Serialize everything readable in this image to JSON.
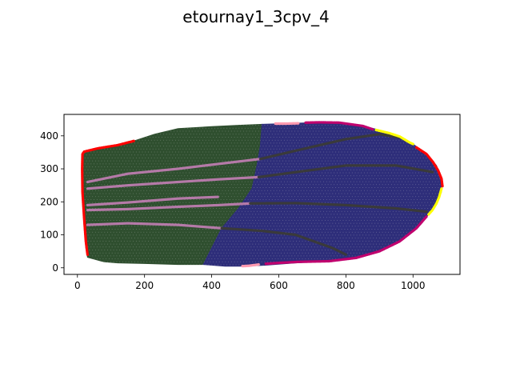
{
  "chart_data": {
    "type": "scatter",
    "title": "etournay1_3cpv_4",
    "xlabel": "",
    "ylabel": "",
    "xlim": [
      -40,
      1140
    ],
    "ylim": [
      -20,
      465
    ],
    "xticks": [
      0,
      200,
      400,
      600,
      800,
      1000
    ],
    "yticks": [
      0,
      100,
      200,
      300,
      400
    ],
    "grid": false,
    "legend": "none",
    "colors": {
      "posterior_region": "#2f4f2f",
      "anterior_region": "#2e2e7a",
      "vein_light": "#b57aa8",
      "vein_dark": "#3a3a3a",
      "margin_red": "#ff0000",
      "margin_magenta": "#c0006e",
      "margin_yellow": "#ffff00",
      "margin_pink": "#ff9ab0"
    },
    "outline": [
      [
        20,
        350
      ],
      [
        60,
        362
      ],
      [
        120,
        372
      ],
      [
        170,
        385
      ],
      [
        230,
        405
      ],
      [
        300,
        422
      ],
      [
        400,
        428
      ],
      [
        480,
        432
      ],
      [
        550,
        435
      ],
      [
        620,
        437
      ],
      [
        700,
        440
      ],
      [
        780,
        440
      ],
      [
        850,
        430
      ],
      [
        910,
        415
      ],
      [
        960,
        398
      ],
      [
        1000,
        375
      ],
      [
        1040,
        345
      ],
      [
        1070,
        310
      ],
      [
        1085,
        270
      ],
      [
        1085,
        230
      ],
      [
        1070,
        195
      ],
      [
        1045,
        160
      ],
      [
        1010,
        120
      ],
      [
        960,
        80
      ],
      [
        900,
        50
      ],
      [
        830,
        30
      ],
      [
        750,
        20
      ],
      [
        650,
        15
      ],
      [
        560,
        8
      ],
      [
        500,
        5
      ],
      [
        440,
        5
      ],
      [
        380,
        8
      ],
      [
        300,
        10
      ],
      [
        200,
        13
      ],
      [
        120,
        15
      ],
      [
        80,
        18
      ],
      [
        30,
        32
      ],
      [
        25,
        60
      ],
      [
        20,
        120
      ],
      [
        15,
        200
      ],
      [
        14,
        280
      ],
      [
        15,
        330
      ]
    ],
    "series": [
      {
        "name": "",
        "kind": "region",
        "color": "#2f4f2f",
        "points": [
          [
            20,
            350
          ],
          [
            60,
            362
          ],
          [
            120,
            372
          ],
          [
            170,
            385
          ],
          [
            230,
            405
          ],
          [
            300,
            422
          ],
          [
            400,
            428
          ],
          [
            480,
            432
          ],
          [
            550,
            435
          ],
          [
            545,
            370
          ],
          [
            535,
            310
          ],
          [
            520,
            240
          ],
          [
            480,
            180
          ],
          [
            430,
            120
          ],
          [
            400,
            60
          ],
          [
            375,
            10
          ],
          [
            300,
            10
          ],
          [
            200,
            13
          ],
          [
            120,
            15
          ],
          [
            80,
            18
          ],
          [
            30,
            32
          ],
          [
            25,
            60
          ],
          [
            20,
            120
          ],
          [
            15,
            200
          ],
          [
            14,
            280
          ],
          [
            15,
            330
          ]
        ]
      },
      {
        "name": "",
        "kind": "region",
        "color": "#2e2e7a",
        "points": [
          [
            550,
            435
          ],
          [
            620,
            437
          ],
          [
            700,
            440
          ],
          [
            780,
            440
          ],
          [
            850,
            430
          ],
          [
            910,
            415
          ],
          [
            960,
            398
          ],
          [
            1000,
            375
          ],
          [
            1040,
            345
          ],
          [
            1070,
            310
          ],
          [
            1085,
            270
          ],
          [
            1085,
            230
          ],
          [
            1070,
            195
          ],
          [
            1045,
            160
          ],
          [
            1010,
            120
          ],
          [
            960,
            80
          ],
          [
            900,
            50
          ],
          [
            830,
            30
          ],
          [
            750,
            20
          ],
          [
            650,
            15
          ],
          [
            560,
            8
          ],
          [
            500,
            5
          ],
          [
            440,
            5
          ],
          [
            375,
            10
          ],
          [
            400,
            60
          ],
          [
            430,
            120
          ],
          [
            480,
            180
          ],
          [
            520,
            240
          ],
          [
            535,
            310
          ],
          [
            545,
            370
          ]
        ]
      },
      {
        "name": "",
        "kind": "vein",
        "color": "#b57aa8",
        "points": [
          [
            30,
            260
          ],
          [
            150,
            285
          ],
          [
            300,
            300
          ],
          [
            420,
            315
          ],
          [
            545,
            330
          ]
        ]
      },
      {
        "name": "",
        "kind": "vein",
        "color": "#3a3a3a",
        "points": [
          [
            545,
            330
          ],
          [
            650,
            355
          ],
          [
            800,
            390
          ],
          [
            900,
            405
          ],
          [
            960,
            395
          ]
        ]
      },
      {
        "name": "",
        "kind": "vein",
        "color": "#b57aa8",
        "points": [
          [
            30,
            240
          ],
          [
            150,
            250
          ],
          [
            300,
            260
          ],
          [
            420,
            268
          ],
          [
            540,
            275
          ]
        ]
      },
      {
        "name": "",
        "kind": "vein",
        "color": "#3a3a3a",
        "points": [
          [
            540,
            275
          ],
          [
            650,
            290
          ],
          [
            800,
            310
          ],
          [
            950,
            310
          ],
          [
            1060,
            290
          ]
        ]
      },
      {
        "name": "",
        "kind": "vein",
        "color": "#b57aa8",
        "points": [
          [
            30,
            190
          ],
          [
            150,
            198
          ],
          [
            300,
            210
          ],
          [
            420,
            215
          ]
        ]
      },
      {
        "name": "",
        "kind": "vein",
        "color": "#b57aa8",
        "points": [
          [
            30,
            175
          ],
          [
            150,
            178
          ],
          [
            300,
            185
          ],
          [
            420,
            190
          ],
          [
            515,
            195
          ]
        ]
      },
      {
        "name": "",
        "kind": "vein",
        "color": "#3a3a3a",
        "points": [
          [
            515,
            195
          ],
          [
            650,
            196
          ],
          [
            800,
            190
          ],
          [
            950,
            180
          ],
          [
            1040,
            170
          ]
        ]
      },
      {
        "name": "",
        "kind": "vein",
        "color": "#b57aa8",
        "points": [
          [
            30,
            130
          ],
          [
            150,
            135
          ],
          [
            300,
            130
          ],
          [
            430,
            120
          ]
        ]
      },
      {
        "name": "",
        "kind": "vein",
        "color": "#3a3a3a",
        "points": [
          [
            430,
            120
          ],
          [
            550,
            112
          ],
          [
            650,
            100
          ],
          [
            760,
            60
          ],
          [
            800,
            40
          ]
        ]
      },
      {
        "name": "",
        "kind": "margin",
        "color": "#ff0000",
        "points": [
          [
            30,
            40
          ],
          [
            25,
            80
          ],
          [
            20,
            150
          ],
          [
            15,
            230
          ],
          [
            14,
            300
          ],
          [
            15,
            345
          ],
          [
            20,
            352
          ],
          [
            60,
            362
          ],
          [
            120,
            372
          ],
          [
            170,
            385
          ]
        ]
      },
      {
        "name": "",
        "kind": "margin",
        "color": "#ff9ab0",
        "points": [
          [
            590,
            437
          ],
          [
            620,
            437
          ],
          [
            660,
            438
          ]
        ]
      },
      {
        "name": "",
        "kind": "margin",
        "color": "#c0006e",
        "points": [
          [
            680,
            440
          ],
          [
            720,
            441
          ],
          [
            780,
            440
          ],
          [
            850,
            430
          ],
          [
            880,
            420
          ]
        ]
      },
      {
        "name": "",
        "kind": "margin",
        "color": "#ffff00",
        "points": [
          [
            890,
            418
          ],
          [
            930,
            408
          ],
          [
            960,
            398
          ],
          [
            990,
            380
          ],
          [
            1000,
            375
          ]
        ]
      },
      {
        "name": "",
        "kind": "margin",
        "color": "#ff0000",
        "points": [
          [
            1010,
            365
          ],
          [
            1040,
            345
          ],
          [
            1060,
            320
          ],
          [
            1075,
            295
          ],
          [
            1085,
            270
          ],
          [
            1088,
            245
          ]
        ]
      },
      {
        "name": "",
        "kind": "margin",
        "color": "#ffff00",
        "points": [
          [
            1085,
            240
          ],
          [
            1078,
            215
          ],
          [
            1070,
            195
          ],
          [
            1058,
            175
          ],
          [
            1045,
            160
          ]
        ]
      },
      {
        "name": "",
        "kind": "margin",
        "color": "#c0006e",
        "points": [
          [
            1040,
            155
          ],
          [
            1010,
            120
          ],
          [
            960,
            80
          ],
          [
            900,
            50
          ],
          [
            830,
            30
          ],
          [
            750,
            20
          ],
          [
            660,
            18
          ],
          [
            600,
            15
          ],
          [
            560,
            12
          ]
        ]
      },
      {
        "name": "",
        "kind": "margin",
        "color": "#ff9ab0",
        "points": [
          [
            540,
            10
          ],
          [
            510,
            6
          ],
          [
            490,
            5
          ]
        ]
      }
    ]
  }
}
